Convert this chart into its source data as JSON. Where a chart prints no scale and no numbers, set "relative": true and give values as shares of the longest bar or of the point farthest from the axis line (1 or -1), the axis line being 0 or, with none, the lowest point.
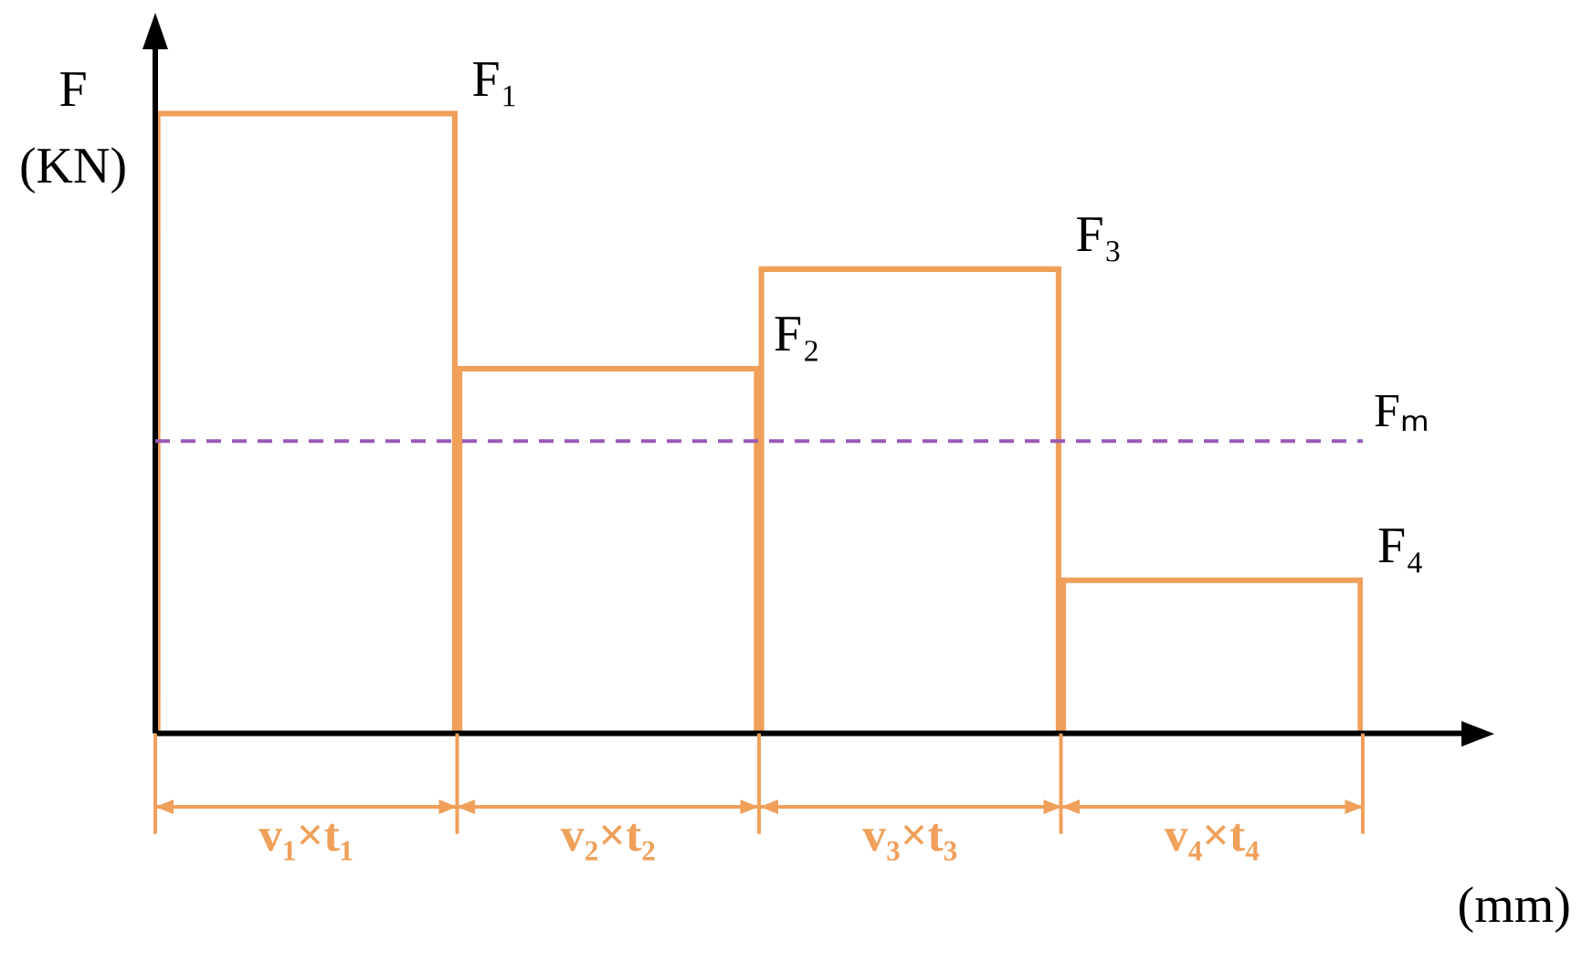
{
  "chart_data": {
    "type": "bar",
    "relative": true,
    "ylabel": "F (KN)",
    "xlabel": "(mm)",
    "categories": [
      "v₁×t₁",
      "v₂×t₂",
      "v₃×t₃",
      "v₄×t₄"
    ],
    "values": [
      1,
      0.59,
      0.75,
      0.25
    ],
    "color": "#f0a05a",
    "ref_lines": [
      {
        "axis": "y",
        "value": 0.47,
        "label": "Fₘ",
        "color": "#9b59b6",
        "line_style": "dashed"
      }
    ],
    "annotations": [
      "F₁",
      "F₂",
      "F₃",
      "F₄"
    ],
    "grid": false,
    "legend": false
  }
}
